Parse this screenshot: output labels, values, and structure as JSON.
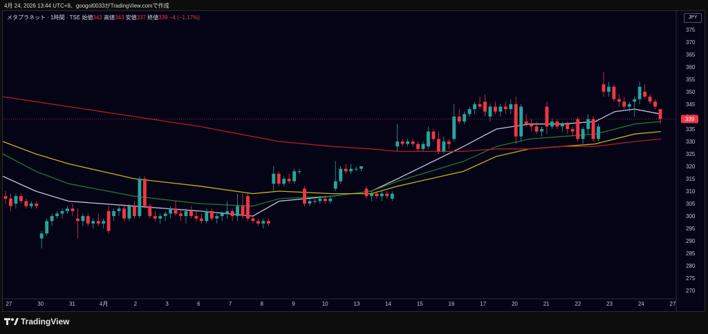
{
  "header": {
    "attribution": "4月 24, 2026 13:44 UTC+9、googol0033がTradingView.comで作成"
  },
  "legend": {
    "symbol": "メタプラネット · 1時間 · TSE",
    "open_label": "始値",
    "open": "343",
    "high_label": "高値",
    "high": "343",
    "low_label": "安値",
    "low": "337",
    "close_label": "終値",
    "close": "339",
    "change": "−4 (−1.17%)"
  },
  "currency": "JPY",
  "footer": {
    "brand": "TradingView"
  },
  "colors": {
    "background": "#050417",
    "up": "#26a69a",
    "down": "#f23645",
    "ma_white": "#c8c3d6",
    "ma_green": "#1f7a2a",
    "ma_yellow": "#c9b60a",
    "ma_red": "#b71c1c",
    "price_line": "#f23645"
  },
  "chart_data": {
    "type": "candlestick",
    "ylim": [
      267,
      378
    ],
    "y_ticks": [
      375,
      370,
      365,
      360,
      355,
      350,
      345,
      340,
      335,
      330,
      325,
      320,
      315,
      310,
      305,
      300,
      295,
      290,
      285,
      280,
      275,
      270
    ],
    "x_tick_labels": [
      "27",
      "30",
      "31",
      "4月",
      "2",
      "3",
      "6",
      "7",
      "8",
      "9",
      "10",
      "13",
      "14",
      "15",
      "16",
      "17",
      "20",
      "21",
      "22",
      "23",
      "24",
      "27"
    ],
    "last_price": 339,
    "candles": [
      {
        "o": 308,
        "h": 310,
        "l": 305,
        "c": 307
      },
      {
        "o": 307,
        "h": 309,
        "l": 302,
        "c": 304
      },
      {
        "o": 305,
        "h": 309,
        "l": 303,
        "c": 308
      },
      {
        "o": 308,
        "h": 309,
        "l": 305,
        "c": 306
      },
      {
        "o": 306,
        "h": 307,
        "l": 303,
        "c": 304
      },
      {
        "o": 304,
        "h": 306,
        "l": 303,
        "c": 305
      },
      {
        "o": 305,
        "h": 306,
        "l": 303,
        "c": 304
      },
      {
        "o": 291,
        "h": 294,
        "l": 287,
        "c": 293
      },
      {
        "o": 293,
        "h": 299,
        "l": 292,
        "c": 298
      },
      {
        "o": 298,
        "h": 301,
        "l": 296,
        "c": 300
      },
      {
        "o": 300,
        "h": 302,
        "l": 299,
        "c": 301
      },
      {
        "o": 301,
        "h": 303,
        "l": 299,
        "c": 302
      },
      {
        "o": 302,
        "h": 304,
        "l": 301,
        "c": 303
      },
      {
        "o": 303,
        "h": 305,
        "l": 300,
        "c": 302
      },
      {
        "o": 299,
        "h": 303,
        "l": 291,
        "c": 298
      },
      {
        "o": 298,
        "h": 301,
        "l": 296,
        "c": 300
      },
      {
        "o": 300,
        "h": 301,
        "l": 296,
        "c": 297
      },
      {
        "o": 297,
        "h": 299,
        "l": 295,
        "c": 298
      },
      {
        "o": 298,
        "h": 301,
        "l": 296,
        "c": 297
      },
      {
        "o": 297,
        "h": 299,
        "l": 295,
        "c": 298
      },
      {
        "o": 302,
        "h": 304,
        "l": 293,
        "c": 294
      },
      {
        "o": 300,
        "h": 303,
        "l": 298,
        "c": 302
      },
      {
        "o": 302,
        "h": 304,
        "l": 300,
        "c": 303
      },
      {
        "o": 303,
        "h": 305,
        "l": 298,
        "c": 299
      },
      {
        "o": 299,
        "h": 305,
        "l": 298,
        "c": 304
      },
      {
        "o": 304,
        "h": 306,
        "l": 299,
        "c": 300
      },
      {
        "o": 300,
        "h": 316,
        "l": 299,
        "c": 315
      },
      {
        "o": 315,
        "h": 316,
        "l": 303,
        "c": 304
      },
      {
        "o": 304,
        "h": 305,
        "l": 299,
        "c": 300
      },
      {
        "o": 300,
        "h": 302,
        "l": 298,
        "c": 299
      },
      {
        "o": 299,
        "h": 301,
        "l": 297,
        "c": 300
      },
      {
        "o": 300,
        "h": 302,
        "l": 298,
        "c": 301
      },
      {
        "o": 301,
        "h": 304,
        "l": 299,
        "c": 303
      },
      {
        "o": 303,
        "h": 306,
        "l": 300,
        "c": 301
      },
      {
        "o": 301,
        "h": 303,
        "l": 298,
        "c": 300
      },
      {
        "o": 300,
        "h": 303,
        "l": 297,
        "c": 302
      },
      {
        "o": 302,
        "h": 304,
        "l": 299,
        "c": 300
      },
      {
        "o": 300,
        "h": 302,
        "l": 298,
        "c": 299
      },
      {
        "o": 299,
        "h": 301,
        "l": 297,
        "c": 298
      },
      {
        "o": 298,
        "h": 303,
        "l": 297,
        "c": 302
      },
      {
        "o": 302,
        "h": 303,
        "l": 298,
        "c": 299
      },
      {
        "o": 299,
        "h": 301,
        "l": 297,
        "c": 300
      },
      {
        "o": 300,
        "h": 302,
        "l": 298,
        "c": 301
      },
      {
        "o": 301,
        "h": 306,
        "l": 299,
        "c": 302
      },
      {
        "o": 302,
        "h": 303,
        "l": 298,
        "c": 300
      },
      {
        "o": 300,
        "h": 309,
        "l": 298,
        "c": 304
      },
      {
        "o": 304,
        "h": 309,
        "l": 299,
        "c": 300
      },
      {
        "o": 308,
        "h": 309,
        "l": 298,
        "c": 299
      },
      {
        "o": 299,
        "h": 300,
        "l": 297,
        "c": 298
      },
      {
        "o": 298,
        "h": 299,
        "l": 296,
        "c": 297
      },
      {
        "o": 297,
        "h": 299,
        "l": 295,
        "c": 298
      },
      {
        "o": 298,
        "h": 299,
        "l": 296,
        "c": 297
      },
      {
        "o": 313,
        "h": 320,
        "l": 310,
        "c": 317
      },
      {
        "o": 317,
        "h": 318,
        "l": 312,
        "c": 313
      },
      {
        "o": 313,
        "h": 316,
        "l": 312,
        "c": 315
      },
      {
        "o": 315,
        "h": 317,
        "l": 313,
        "c": 314
      },
      {
        "o": 314,
        "h": 319,
        "l": 313,
        "c": 318
      },
      {
        "o": 318,
        "h": 319,
        "l": 317,
        "c": 318
      },
      {
        "o": 311,
        "h": 312,
        "l": 304,
        "c": 305
      },
      {
        "o": 305,
        "h": 307,
        "l": 304,
        "c": 306
      },
      {
        "o": 306,
        "h": 307,
        "l": 305,
        "c": 306
      },
      {
        "o": 306,
        "h": 308,
        "l": 305,
        "c": 307
      },
      {
        "o": 307,
        "h": 308,
        "l": 305,
        "c": 306
      },
      {
        "o": 306,
        "h": 308,
        "l": 305,
        "c": 307
      },
      {
        "o": 311,
        "h": 322,
        "l": 310,
        "c": 314
      },
      {
        "o": 314,
        "h": 320,
        "l": 313,
        "c": 319
      },
      {
        "o": 319,
        "h": 321,
        "l": 317,
        "c": 318
      },
      {
        "o": 318,
        "h": 321,
        "l": 317,
        "c": 319
      },
      {
        "o": 319,
        "h": 320,
        "l": 318,
        "c": 319
      },
      {
        "o": 319,
        "h": 320,
        "l": 318,
        "c": 320
      },
      {
        "o": 311,
        "h": 312,
        "l": 307,
        "c": 308
      },
      {
        "o": 308,
        "h": 310,
        "l": 306,
        "c": 309
      },
      {
        "o": 309,
        "h": 310,
        "l": 307,
        "c": 308
      },
      {
        "o": 308,
        "h": 310,
        "l": 306,
        "c": 309
      },
      {
        "o": 309,
        "h": 310,
        "l": 307,
        "c": 308
      },
      {
        "o": 307,
        "h": 310,
        "l": 306,
        "c": 309
      },
      {
        "o": 328,
        "h": 337,
        "l": 326,
        "c": 330
      },
      {
        "o": 330,
        "h": 331,
        "l": 328,
        "c": 329
      },
      {
        "o": 329,
        "h": 331,
        "l": 328,
        "c": 330
      },
      {
        "o": 330,
        "h": 331,
        "l": 328,
        "c": 329
      },
      {
        "o": 329,
        "h": 330,
        "l": 326,
        "c": 327
      },
      {
        "o": 327,
        "h": 330,
        "l": 326,
        "c": 329
      },
      {
        "o": 328,
        "h": 336,
        "l": 327,
        "c": 334
      },
      {
        "o": 334,
        "h": 335,
        "l": 330,
        "c": 331
      },
      {
        "o": 331,
        "h": 334,
        "l": 325,
        "c": 326
      },
      {
        "o": 326,
        "h": 332,
        "l": 325,
        "c": 330
      },
      {
        "o": 330,
        "h": 331,
        "l": 327,
        "c": 329
      },
      {
        "o": 331,
        "h": 345,
        "l": 330,
        "c": 340
      },
      {
        "o": 340,
        "h": 343,
        "l": 337,
        "c": 338
      },
      {
        "o": 338,
        "h": 342,
        "l": 337,
        "c": 341
      },
      {
        "o": 341,
        "h": 344,
        "l": 340,
        "c": 343
      },
      {
        "o": 343,
        "h": 346,
        "l": 341,
        "c": 345
      },
      {
        "o": 345,
        "h": 348,
        "l": 343,
        "c": 344
      },
      {
        "o": 346,
        "h": 349,
        "l": 340,
        "c": 342
      },
      {
        "o": 340,
        "h": 345,
        "l": 338,
        "c": 344
      },
      {
        "o": 344,
        "h": 346,
        "l": 341,
        "c": 342
      },
      {
        "o": 342,
        "h": 345,
        "l": 340,
        "c": 344
      },
      {
        "o": 344,
        "h": 346,
        "l": 341,
        "c": 343
      },
      {
        "o": 343,
        "h": 347,
        "l": 341,
        "c": 345
      },
      {
        "o": 345,
        "h": 348,
        "l": 329,
        "c": 332
      },
      {
        "o": 332,
        "h": 345,
        "l": 330,
        "c": 344
      },
      {
        "o": 338,
        "h": 341,
        "l": 336,
        "c": 337
      },
      {
        "o": 337,
        "h": 339,
        "l": 334,
        "c": 336
      },
      {
        "o": 336,
        "h": 338,
        "l": 333,
        "c": 334
      },
      {
        "o": 334,
        "h": 336,
        "l": 332,
        "c": 335
      },
      {
        "o": 344,
        "h": 346,
        "l": 333,
        "c": 336
      },
      {
        "o": 336,
        "h": 339,
        "l": 335,
        "c": 338
      },
      {
        "o": 338,
        "h": 339,
        "l": 335,
        "c": 336
      },
      {
        "o": 336,
        "h": 338,
        "l": 334,
        "c": 337
      },
      {
        "o": 337,
        "h": 338,
        "l": 333,
        "c": 335
      },
      {
        "o": 335,
        "h": 336,
        "l": 332,
        "c": 334
      },
      {
        "o": 339,
        "h": 340,
        "l": 330,
        "c": 331
      },
      {
        "o": 331,
        "h": 336,
        "l": 329,
        "c": 335
      },
      {
        "o": 335,
        "h": 341,
        "l": 333,
        "c": 339
      },
      {
        "o": 339,
        "h": 340,
        "l": 330,
        "c": 331
      },
      {
        "o": 331,
        "h": 337,
        "l": 330,
        "c": 336
      },
      {
        "o": 353,
        "h": 358,
        "l": 348,
        "c": 350
      },
      {
        "o": 350,
        "h": 354,
        "l": 348,
        "c": 352
      },
      {
        "o": 352,
        "h": 353,
        "l": 346,
        "c": 347
      },
      {
        "o": 347,
        "h": 349,
        "l": 344,
        "c": 346
      },
      {
        "o": 346,
        "h": 348,
        "l": 343,
        "c": 344
      },
      {
        "o": 344,
        "h": 346,
        "l": 342,
        "c": 345
      },
      {
        "o": 346,
        "h": 348,
        "l": 340,
        "c": 347
      },
      {
        "o": 347,
        "h": 354,
        "l": 345,
        "c": 352
      },
      {
        "o": 350,
        "h": 353,
        "l": 347,
        "c": 348
      },
      {
        "o": 348,
        "h": 349,
        "l": 345,
        "c": 346
      },
      {
        "o": 346,
        "h": 347,
        "l": 343,
        "c": 344
      },
      {
        "o": 343,
        "h": 343,
        "l": 337,
        "c": 339
      }
    ],
    "moving_averages": [
      {
        "color": "ma_white",
        "x": [
          0,
          0.05,
          0.1,
          0.2,
          0.3,
          0.38,
          0.42,
          0.5,
          0.56,
          0.6,
          0.7,
          0.75,
          0.8,
          0.85,
          0.9,
          0.93,
          0.96,
          1
        ],
        "y": [
          316,
          310,
          306,
          304,
          302,
          300,
          306,
          308,
          310,
          315,
          328,
          335,
          337,
          337,
          338,
          342,
          343,
          341
        ]
      },
      {
        "color": "ma_green",
        "x": [
          0,
          0.05,
          0.1,
          0.2,
          0.3,
          0.38,
          0.42,
          0.5,
          0.56,
          0.6,
          0.7,
          0.75,
          0.8,
          0.85,
          0.9,
          0.93,
          0.96,
          1
        ],
        "y": [
          325,
          318,
          313,
          308,
          305,
          304,
          307,
          308,
          310,
          314,
          322,
          328,
          331,
          332,
          333,
          335,
          337,
          338
        ]
      },
      {
        "color": "ma_yellow",
        "x": [
          0,
          0.05,
          0.1,
          0.2,
          0.3,
          0.38,
          0.42,
          0.5,
          0.56,
          0.6,
          0.7,
          0.75,
          0.8,
          0.85,
          0.9,
          0.93,
          0.96,
          1
        ],
        "y": [
          330,
          325,
          321,
          315,
          312,
          309,
          310,
          309,
          309,
          312,
          318,
          324,
          327,
          328,
          329,
          331,
          333,
          334
        ]
      },
      {
        "color": "ma_red",
        "x": [
          0,
          0.05,
          0.1,
          0.2,
          0.3,
          0.38,
          0.42,
          0.5,
          0.56,
          0.6,
          0.7,
          0.75,
          0.8,
          0.85,
          0.9,
          0.93,
          0.96,
          1
        ],
        "y": [
          348,
          346,
          344,
          340,
          336,
          332,
          330,
          328,
          327,
          326,
          326,
          327,
          327,
          328,
          328,
          329,
          330,
          331
        ]
      }
    ]
  }
}
